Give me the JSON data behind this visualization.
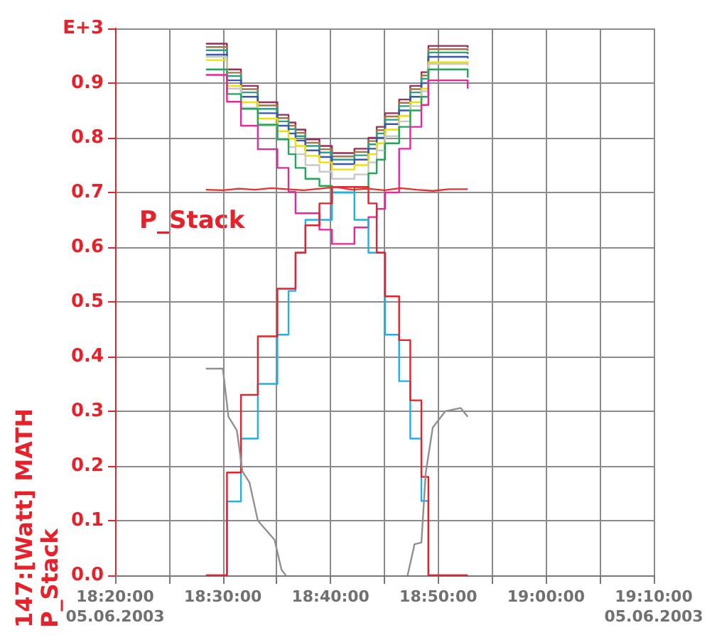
{
  "chart_data": {
    "type": "step",
    "ylabel": "147:[Watt] MATH\nP_Stack",
    "x": [
      "2003-06-05T18:28:26",
      "2003-06-05T18:30:23",
      "2003-06-05T18:31:41",
      "2003-06-05T18:33:15",
      "2003-06-05T18:35:04",
      "2003-06-05T18:36:06",
      "2003-06-05T18:36:45",
      "2003-06-05T18:37:40",
      "2003-06-05T18:38:58",
      "2003-06-05T18:40:08",
      "2003-06-05T18:42:13",
      "2003-06-05T18:43:31",
      "2003-06-05T18:44:17",
      "2003-06-05T18:45:04",
      "2003-06-05T18:46:22",
      "2003-06-05T18:47:24",
      "2003-06-05T18:48:26",
      "2003-06-05T18:49:05",
      "2003-06-05T18:52:44"
    ],
    "series": [
      {
        "color": "#9b2d5a",
        "values": [
          0.972,
          0.925,
          0.895,
          0.865,
          0.842,
          0.828,
          0.815,
          0.797,
          0.785,
          0.772,
          0.78,
          0.8,
          0.82,
          0.845,
          0.87,
          0.895,
          0.92,
          0.968,
          0.965
        ]
      },
      {
        "color": "#a07848",
        "values": [
          0.966,
          0.919,
          0.889,
          0.859,
          0.836,
          0.822,
          0.809,
          0.791,
          0.779,
          0.766,
          0.774,
          0.794,
          0.814,
          0.839,
          0.864,
          0.889,
          0.914,
          0.962,
          0.959
        ]
      },
      {
        "color": "#2aa08a",
        "values": [
          0.96,
          0.913,
          0.883,
          0.853,
          0.83,
          0.816,
          0.803,
          0.785,
          0.773,
          0.76,
          0.768,
          0.788,
          0.808,
          0.833,
          0.858,
          0.883,
          0.908,
          0.956,
          0.953
        ]
      },
      {
        "color": "#3a5aa8",
        "values": [
          0.952,
          0.905,
          0.875,
          0.845,
          0.822,
          0.808,
          0.795,
          0.777,
          0.765,
          0.752,
          0.76,
          0.78,
          0.8,
          0.825,
          0.85,
          0.875,
          0.9,
          0.948,
          0.945
        ]
      },
      {
        "color": "#f0e000",
        "values": [
          0.942,
          0.895,
          0.865,
          0.835,
          0.812,
          0.798,
          0.785,
          0.767,
          0.755,
          0.742,
          0.75,
          0.77,
          0.79,
          0.815,
          0.84,
          0.865,
          0.89,
          0.938,
          0.935
        ]
      },
      {
        "color": "#c8c8c8",
        "values": [
          0.948,
          0.89,
          0.855,
          0.822,
          0.798,
          0.783,
          0.77,
          0.75,
          0.738,
          0.725,
          0.733,
          0.755,
          0.777,
          0.803,
          0.83,
          0.858,
          0.885,
          0.935,
          0.932
        ]
      },
      {
        "color": "#20a858",
        "values": [
          0.925,
          0.88,
          0.853,
          0.824,
          0.797,
          0.77,
          0.745,
          0.725,
          0.712,
          0.7,
          0.71,
          0.735,
          0.76,
          0.79,
          0.82,
          0.85,
          0.875,
          0.925,
          0.91
        ]
      },
      {
        "color": "#e8259a",
        "values": [
          0.915,
          0.866,
          0.822,
          0.779,
          0.745,
          0.701,
          0.662,
          0.662,
          0.632,
          0.606,
          0.636,
          0.655,
          0.67,
          0.7,
          0.78,
          0.82,
          0.86,
          0.905,
          0.89
        ]
      },
      {
        "color": "#20b0e8",
        "values": [
          0,
          0.135,
          0.25,
          0.35,
          0.44,
          0.52,
          0.59,
          0.65,
          0.65,
          0.7,
          0.65,
          0.59,
          0.59,
          0.44,
          0.355,
          0.25,
          0.136,
          0,
          0
        ]
      },
      {
        "name": "P_Stack",
        "color": "#e8202a",
        "values": [
          0,
          0.188,
          0.33,
          0.437,
          0.524,
          0.524,
          0.59,
          0.64,
          0.68,
          0.71,
          0.71,
          0.68,
          0.59,
          0.51,
          0.43,
          0.32,
          0.18,
          0,
          0
        ]
      },
      {
        "type": "line",
        "color": "#e83030",
        "x": [
          "2003-06-05T18:28:26",
          "2003-06-05T18:30:00",
          "2003-06-05T18:31:30",
          "2003-06-05T18:33:00",
          "2003-06-05T18:34:30",
          "2003-06-05T18:36:00",
          "2003-06-05T18:37:30",
          "2003-06-05T18:39:00",
          "2003-06-05T18:40:30",
          "2003-06-05T18:42:00",
          "2003-06-05T18:43:30",
          "2003-06-05T18:45:00",
          "2003-06-05T18:46:30",
          "2003-06-05T18:48:00",
          "2003-06-05T18:49:30",
          "2003-06-05T18:51:00",
          "2003-06-05T18:52:44"
        ],
        "values": [
          0.705,
          0.704,
          0.707,
          0.705,
          0.708,
          0.706,
          0.704,
          0.707,
          0.71,
          0.705,
          0.707,
          0.704,
          0.708,
          0.705,
          0.703,
          0.706,
          0.706
        ]
      },
      {
        "type": "line",
        "color": "#909090",
        "x": [
          "2003-06-05T18:28:26",
          "2003-06-05T18:30:00",
          "2003-06-05T18:30:31",
          "2003-06-05T18:31:18",
          "2003-06-05T18:31:49",
          "2003-06-05T18:32:28",
          "2003-06-05T18:33:15",
          "2003-06-05T18:34:48",
          "2003-06-05T18:35:27",
          "2003-06-05T18:35:51",
          "2003-06-05T18:40:00",
          "2003-06-05T18:47:09",
          "2003-06-05T18:47:48",
          "2003-06-05T18:48:26",
          "2003-06-05T18:48:50",
          "2003-06-05T18:49:29",
          "2003-06-05T18:50:39",
          "2003-06-05T18:52:05",
          "2003-06-05T18:52:44"
        ],
        "values": [
          0.378,
          0.378,
          0.29,
          0.265,
          0.19,
          0.17,
          0.1,
          0.065,
          0.01,
          0,
          null,
          0,
          0.057,
          0.06,
          0.187,
          0.27,
          0.3,
          0.306,
          0.29
        ]
      }
    ],
    "xlim": [
      "2003-06-05T18:20",
      "2003-06-05T19:10"
    ],
    "xticks": [
      {
        "value": "2003-06-05T18:20",
        "label": "18:20:00\n05.06.2003"
      },
      {
        "value": "2003-06-05T18:25",
        "label": null
      },
      {
        "value": "2003-06-05T18:30",
        "label": "18:30:00"
      },
      {
        "value": "2003-06-05T18:35",
        "label": null
      },
      {
        "value": "2003-06-05T18:40",
        "label": "18:40:00"
      },
      {
        "value": "2003-06-05T18:45",
        "label": null
      },
      {
        "value": "2003-06-05T18:50",
        "label": "18:50:00"
      },
      {
        "value": "2003-06-05T18:55",
        "label": null
      },
      {
        "value": "2003-06-05T19:00",
        "label": "19:00:00"
      },
      {
        "value": "2003-06-05T19:05",
        "label": null
      },
      {
        "value": "2003-06-05T19:10",
        "label": "19:10:00\n05.06.2003"
      }
    ],
    "ylim": [
      0,
      1
    ],
    "yticks": [
      {
        "value": 0,
        "label": "0.0"
      },
      {
        "value": 0.1,
        "label": "0.1"
      },
      {
        "value": 0.2,
        "label": "0.2"
      },
      {
        "value": 0.3,
        "label": "0.3"
      },
      {
        "value": 0.4,
        "label": "0.4"
      },
      {
        "value": 0.5,
        "label": "0.5"
      },
      {
        "value": 0.6,
        "label": "0.6"
      },
      {
        "value": 0.7,
        "label": "0.7"
      },
      {
        "value": 0.8,
        "label": "0.8"
      },
      {
        "value": 0.9,
        "label": "0.9"
      },
      {
        "value": 1,
        "label": "E+3"
      }
    ],
    "grid": true,
    "legend": false,
    "marker": "none"
  }
}
